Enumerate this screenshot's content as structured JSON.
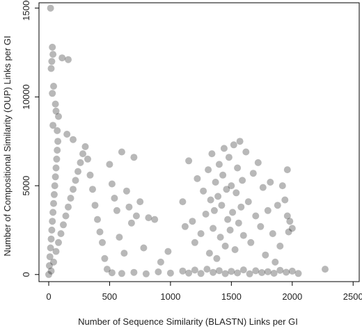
{
  "chart_data": {
    "type": "scatter",
    "title": "",
    "xlabel": "Number of Sequence Similarity (BLASTN) Links per GI",
    "ylabel": "Number of Compositional Similarity (OUP) Links per GI",
    "xlim": [
      -80,
      2550
    ],
    "ylim": [
      -400,
      15300
    ],
    "x_ticks": [
      0,
      500,
      1000,
      1500,
      2000,
      2500
    ],
    "y_ticks": [
      0,
      5000,
      10000,
      15000
    ],
    "grid": false,
    "legend": "none",
    "marker_color": "#000000",
    "marker_opacity": 0.28,
    "points": [
      [
        0,
        0
      ],
      [
        5,
        500
      ],
      [
        10,
        1000
      ],
      [
        15,
        1500
      ],
      [
        20,
        2000
      ],
      [
        25,
        2500
      ],
      [
        30,
        3000
      ],
      [
        35,
        3500
      ],
      [
        40,
        4000
      ],
      [
        45,
        4500
      ],
      [
        50,
        5000
      ],
      [
        55,
        5500
      ],
      [
        60,
        6000
      ],
      [
        65,
        6500
      ],
      [
        70,
        7000
      ],
      [
        75,
        7500
      ],
      [
        20,
        200
      ],
      [
        40,
        700
      ],
      [
        60,
        1300
      ],
      [
        80,
        1800
      ],
      [
        100,
        2300
      ],
      [
        120,
        2800
      ],
      [
        140,
        3300
      ],
      [
        160,
        3800
      ],
      [
        180,
        4300
      ],
      [
        200,
        4800
      ],
      [
        220,
        5300
      ],
      [
        240,
        5800
      ],
      [
        260,
        6300
      ],
      [
        280,
        6800
      ],
      [
        300,
        7200
      ],
      [
        30,
        12800
      ],
      [
        35,
        12400
      ],
      [
        25,
        12000
      ],
      [
        20,
        11600
      ],
      [
        15,
        15000
      ],
      [
        110,
        12200
      ],
      [
        160,
        12100
      ],
      [
        40,
        10600
      ],
      [
        30,
        10200
      ],
      [
        55,
        9600
      ],
      [
        60,
        9200
      ],
      [
        80,
        8900
      ],
      [
        35,
        8400
      ],
      [
        70,
        8100
      ],
      [
        150,
        7900
      ],
      [
        200,
        7600
      ],
      [
        320,
        6500
      ],
      [
        340,
        5600
      ],
      [
        360,
        4800
      ],
      [
        380,
        3900
      ],
      [
        400,
        3100
      ],
      [
        420,
        2400
      ],
      [
        440,
        1800
      ],
      [
        460,
        900
      ],
      [
        480,
        300
      ],
      [
        500,
        6200
      ],
      [
        520,
        5100
      ],
      [
        540,
        4300
      ],
      [
        560,
        3600
      ],
      [
        580,
        2100
      ],
      [
        600,
        6900
      ],
      [
        620,
        1200
      ],
      [
        640,
        4700
      ],
      [
        660,
        3800
      ],
      [
        680,
        2900
      ],
      [
        700,
        6600
      ],
      [
        720,
        3300
      ],
      [
        750,
        4100
      ],
      [
        780,
        1500
      ],
      [
        820,
        3200
      ],
      [
        870,
        3100
      ],
      [
        920,
        700
      ],
      [
        980,
        1300
      ],
      [
        520,
        100
      ],
      [
        600,
        60
      ],
      [
        700,
        120
      ],
      [
        800,
        40
      ],
      [
        900,
        150
      ],
      [
        1000,
        80
      ],
      [
        1100,
        4100
      ],
      [
        1120,
        2700
      ],
      [
        1150,
        6400
      ],
      [
        1180,
        3000
      ],
      [
        1200,
        1800
      ],
      [
        1220,
        5400
      ],
      [
        1250,
        2300
      ],
      [
        1270,
        4700
      ],
      [
        1290,
        3400
      ],
      [
        1310,
        5900
      ],
      [
        1320,
        1200
      ],
      [
        1330,
        4200
      ],
      [
        1340,
        6800
      ],
      [
        1350,
        2600
      ],
      [
        1360,
        3600
      ],
      [
        1370,
        5200
      ],
      [
        1380,
        900
      ],
      [
        1390,
        4400
      ],
      [
        1400,
        6200
      ],
      [
        1410,
        2100
      ],
      [
        1420,
        3900
      ],
      [
        1430,
        5600
      ],
      [
        1440,
        7100
      ],
      [
        1450,
        1600
      ],
      [
        1460,
        4800
      ],
      [
        1470,
        3100
      ],
      [
        1480,
        6600
      ],
      [
        1490,
        2500
      ],
      [
        1500,
        5000
      ],
      [
        1510,
        3500
      ],
      [
        1520,
        7300
      ],
      [
        1530,
        1400
      ],
      [
        1540,
        4600
      ],
      [
        1550,
        6000
      ],
      [
        1560,
        2900
      ],
      [
        1570,
        7500
      ],
      [
        1580,
        3800
      ],
      [
        1590,
        5300
      ],
      [
        1600,
        2200
      ],
      [
        1620,
        6900
      ],
      [
        1640,
        4100
      ],
      [
        1660,
        1800
      ],
      [
        1680,
        5700
      ],
      [
        1700,
        3300
      ],
      [
        1720,
        6300
      ],
      [
        1740,
        2700
      ],
      [
        1760,
        4900
      ],
      [
        1780,
        1100
      ],
      [
        1800,
        3600
      ],
      [
        1820,
        5200
      ],
      [
        1840,
        2300
      ],
      [
        1860,
        700
      ],
      [
        1880,
        3900
      ],
      [
        1900,
        1600
      ],
      [
        1920,
        5000
      ],
      [
        1940,
        4200
      ],
      [
        1960,
        5900
      ],
      [
        1970,
        2400
      ],
      [
        1980,
        3000
      ],
      [
        2000,
        2600
      ],
      [
        1960,
        3300
      ],
      [
        2270,
        300
      ],
      [
        1150,
        80
      ],
      [
        1250,
        60
      ],
      [
        1350,
        120
      ],
      [
        1450,
        50
      ],
      [
        1550,
        90
      ],
      [
        1650,
        40
      ],
      [
        1750,
        110
      ],
      [
        1850,
        70
      ],
      [
        1950,
        130
      ],
      [
        2050,
        60
      ],
      [
        1100,
        200
      ],
      [
        1200,
        250
      ],
      [
        1300,
        300
      ],
      [
        1400,
        220
      ],
      [
        1500,
        180
      ],
      [
        1600,
        260
      ],
      [
        1700,
        210
      ],
      [
        1800,
        160
      ],
      [
        1900,
        240
      ],
      [
        2000,
        190
      ]
    ]
  }
}
